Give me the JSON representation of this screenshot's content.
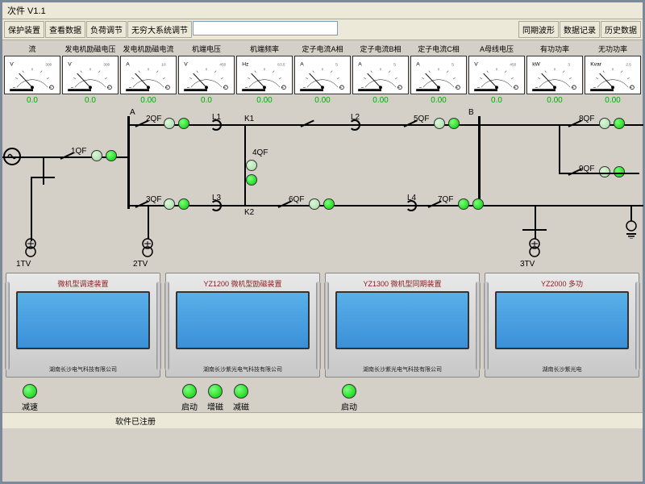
{
  "title": "次件 V1.1",
  "toolbar": {
    "b1": "保护装置",
    "b2": "查看数据",
    "b3": "负荷调节",
    "b4": "无穷大系统调节",
    "b5": "同期波形",
    "b6": "数据记录",
    "b7": "历史数据"
  },
  "meters": [
    {
      "label": "流",
      "unit": "V",
      "range": "300",
      "scale": "0 100 200 300",
      "value": "0.0"
    },
    {
      "label": "发电机励磁电压",
      "unit": "V",
      "range": "300",
      "scale": "0 100 200 300",
      "value": "0.0"
    },
    {
      "label": "发电机励磁电流",
      "unit": "A",
      "range": "10",
      "scale": "0 2 4 6 8 10",
      "value": "0.00"
    },
    {
      "label": "机端电压",
      "unit": "V",
      "range": "450",
      "scale": "0 150 300 450",
      "value": "0.0"
    },
    {
      "label": "机端频率",
      "unit": "Hz",
      "range": "63.5",
      "scale": "45 50 55 60 63.5",
      "value": "0.00"
    },
    {
      "label": "定子电流A相",
      "unit": "A",
      "range": "5",
      "scale": "0 1 2 3 4 5",
      "value": "0.00"
    },
    {
      "label": "定子电流B相",
      "unit": "A",
      "range": "5",
      "scale": "0 1 2 3 4 5",
      "value": "0.00"
    },
    {
      "label": "定子电流C相",
      "unit": "A",
      "range": "5",
      "scale": "0 1 2 3 4 5",
      "value": "0.00"
    },
    {
      "label": "A母线电压",
      "unit": "V",
      "range": "450",
      "scale": "0 150 300 450",
      "value": "0.0"
    },
    {
      "label": "有功功率",
      "unit": "kW",
      "range": "3",
      "scale": "0 1 2 3",
      "value": "0.00"
    },
    {
      "label": "无功功率",
      "unit": "Kvar",
      "range": "2.5",
      "scale": "-2.5 -1.25 0 1.25 2.5",
      "value": "0.00"
    }
  ],
  "diagram": {
    "busA_label": "A",
    "busB_label": "B",
    "breakers": [
      "1QF",
      "2QF",
      "3QF",
      "4QF",
      "5QF",
      "6QF",
      "7QF",
      "8QF",
      "9QF"
    ],
    "relays": [
      "K1",
      "K2"
    ],
    "lines": [
      "L1",
      "L2",
      "L3",
      "L4"
    ],
    "transformers": [
      "1TV",
      "2TV",
      "3TV"
    ],
    "colors": {
      "led_on": "#00cc00",
      "led_off": "#b8e8b8",
      "line": "#000000"
    }
  },
  "devices": [
    {
      "title": "微机型调速装置",
      "company": "湖南长沙电气科技有限公司"
    },
    {
      "title": "YZ1200 微机型励磁装置",
      "company": "湖南长沙紫光电气科技有限公司"
    },
    {
      "title": "YZ1300 微机型同期装置",
      "company": "湖南长沙紫光电气科技有限公司"
    },
    {
      "title": "YZ2000 多功",
      "company": "湖南长沙紫光电"
    }
  ],
  "controls": [
    {
      "buttons": [
        {
          "label": "减速"
        }
      ]
    },
    {
      "buttons": [
        {
          "label": "启动"
        },
        {
          "label": "增磁"
        },
        {
          "label": "减磁"
        }
      ]
    },
    {
      "buttons": [
        {
          "label": "启动"
        }
      ]
    },
    {
      "buttons": []
    }
  ],
  "status": "软件已注册"
}
